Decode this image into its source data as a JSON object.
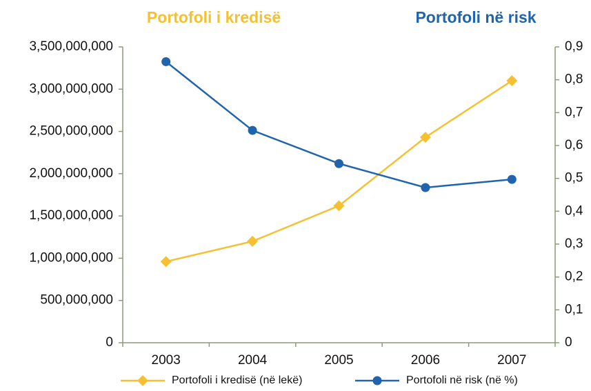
{
  "chart_data": {
    "type": "line",
    "headers": [
      {
        "text": "Portofoli i kredisë",
        "color": "#f5c132"
      },
      {
        "text": "Portofoli në risk",
        "color": "#1f64ad"
      }
    ],
    "categories": [
      "2003",
      "2004",
      "2005",
      "2006",
      "2007"
    ],
    "series": [
      {
        "name": "Portofoli i kredisë (në lekë)",
        "color": "#f5c132",
        "marker": "diamond",
        "axis": "y",
        "values": [
          960000000,
          1200000000,
          1620000000,
          2430000000,
          3100000000
        ]
      },
      {
        "name": "Portofoli në risk (në %)",
        "color": "#1f64ad",
        "marker": "circle",
        "axis": "y2",
        "values": [
          0.855,
          0.646,
          0.545,
          0.472,
          0.497
        ]
      }
    ],
    "ylim": [
      0,
      3500000000
    ],
    "yticks": [
      0,
      {
        "value": 500000000,
        "label": "500,000,000"
      },
      {
        "value": 1000000000,
        "label": "1,000,000,000"
      },
      {
        "value": 1500000000,
        "label": "1,500,000,000"
      },
      {
        "value": 2000000000,
        "label": "2,000,000,000"
      },
      {
        "value": 2500000000,
        "label": "2,500,000,000"
      },
      {
        "value": 3000000000,
        "label": "3,000,000,000"
      },
      {
        "value": 3500000000,
        "label": "3,500,000,000"
      }
    ],
    "y2lim": [
      0,
      0.9
    ],
    "y2ticks": [
      0,
      {
        "value": 0.1,
        "label": "0,1"
      },
      {
        "value": 0.2,
        "label": "0,2"
      },
      {
        "value": 0.3,
        "label": "0,3"
      },
      {
        "value": 0.4,
        "label": "0,4"
      },
      {
        "value": 0.5,
        "label": "0,5"
      },
      {
        "value": 0.6,
        "label": "0,6"
      },
      {
        "value": 0.7,
        "label": "0,7"
      },
      {
        "value": 0.8,
        "label": "0,8"
      },
      {
        "value": 0.9,
        "label": "0,9"
      }
    ],
    "legend": "bottom"
  }
}
